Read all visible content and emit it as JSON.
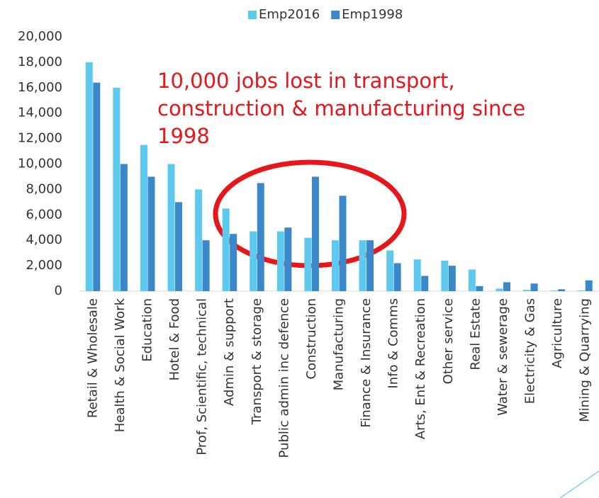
{
  "chart_data": {
    "type": "bar",
    "categories": [
      "Retail & Wholesale",
      "Health & Social Work",
      "Education",
      "Hotel & Food",
      "Prof, Scientific, technical",
      "Admin & support",
      "Transport & storage",
      "Public admin inc defence",
      "Construction",
      "Manufacturing",
      "Finance & Insurance",
      "Info & Comms",
      "Arts, Ent & Recreation",
      "Other service",
      "Real Estate",
      "Water & sewerage",
      "Electricity & Gas",
      "Agriculture",
      "Mining & Quarrying"
    ],
    "series": [
      {
        "name": "Emp2016",
        "color": "#5ec9ee",
        "values": [
          18000,
          16000,
          11500,
          10000,
          8000,
          6500,
          4700,
          4700,
          4200,
          4000,
          4000,
          3200,
          2500,
          2400,
          1700,
          200,
          100,
          50,
          50
        ]
      },
      {
        "name": "Emp1998",
        "color": "#3a88c9",
        "values": [
          16400,
          10000,
          9000,
          7000,
          4000,
          4500,
          8500,
          5000,
          9000,
          7500,
          4000,
          2200,
          1200,
          2000,
          400,
          700,
          600,
          150,
          850
        ]
      }
    ],
    "ylim": [
      0,
      20000
    ],
    "yticks": [
      0,
      {
        "value": 2000,
        "label": "2,000"
      },
      {
        "value": 4000,
        "label": "4,000"
      },
      {
        "value": 6000,
        "label": "6,000"
      },
      {
        "value": 8000,
        "label": "8,000"
      },
      {
        "value": 10000,
        "label": "10,000"
      },
      {
        "value": 12000,
        "label": "12,000"
      },
      {
        "value": 14000,
        "label": "14,000"
      },
      {
        "value": 16000,
        "label": "16,000"
      },
      {
        "value": 18000,
        "label": "18,000"
      },
      {
        "value": 20000,
        "label": "20,000"
      }
    ],
    "annotations": [
      "10,000 jobs lost in transport,",
      "construction & manufacturing since",
      "1998"
    ],
    "legend": "top"
  }
}
